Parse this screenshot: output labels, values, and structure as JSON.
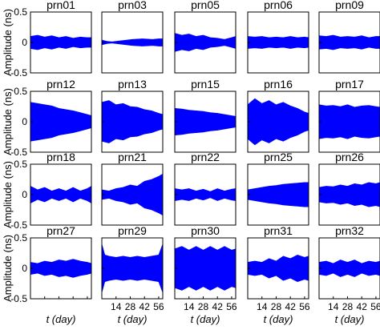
{
  "chart_data": [
    {
      "type": "area",
      "title": "prn01",
      "ylim": [
        -0.5,
        0.5
      ],
      "ylabel": "Amplitude (ns)",
      "xlabel": "",
      "yticks": [
        "0.5",
        "0",
        "-0.5"
      ],
      "xticks": [],
      "x": [
        0,
        7,
        14,
        21,
        28,
        35,
        42,
        49,
        56,
        60
      ],
      "upper": [
        0.1,
        0.12,
        0.09,
        0.11,
        0.08,
        0.1,
        0.07,
        0.09,
        0.08,
        0.08
      ],
      "lower": [
        -0.1,
        -0.12,
        -0.09,
        -0.11,
        -0.08,
        -0.1,
        -0.07,
        -0.09,
        -0.08,
        -0.08
      ]
    },
    {
      "type": "area",
      "title": "prn03",
      "ylim": [
        -0.5,
        0.5
      ],
      "x": [
        0,
        5,
        10,
        20,
        30,
        40,
        50,
        56,
        60
      ],
      "upper": [
        0.04,
        0.02,
        0.01,
        0.03,
        0.05,
        0.06,
        0.05,
        0.06,
        0.06
      ],
      "lower": [
        -0.04,
        -0.02,
        -0.01,
        -0.03,
        -0.05,
        -0.06,
        -0.05,
        -0.06,
        -0.06
      ]
    },
    {
      "type": "area",
      "title": "prn05",
      "ylim": [
        -0.5,
        0.5
      ],
      "x": [
        0,
        7,
        14,
        21,
        28,
        35,
        42,
        49,
        56,
        60
      ],
      "upper": [
        0.15,
        0.12,
        0.14,
        0.1,
        0.12,
        0.08,
        0.07,
        0.05,
        0.08,
        0.1
      ],
      "lower": [
        -0.15,
        -0.12,
        -0.14,
        -0.1,
        -0.12,
        -0.08,
        -0.07,
        -0.05,
        -0.08,
        -0.1
      ]
    },
    {
      "type": "area",
      "title": "prn06",
      "ylim": [
        -0.5,
        0.5
      ],
      "x": [
        0,
        7,
        14,
        21,
        28,
        35,
        42,
        49,
        56,
        60
      ],
      "upper": [
        0.1,
        0.09,
        0.1,
        0.08,
        0.09,
        0.08,
        0.1,
        0.08,
        0.09,
        0.08
      ],
      "lower": [
        -0.1,
        -0.09,
        -0.1,
        -0.08,
        -0.09,
        -0.08,
        -0.1,
        -0.08,
        -0.09,
        -0.08
      ]
    },
    {
      "type": "area",
      "title": "prn09",
      "ylim": [
        -0.5,
        0.5
      ],
      "x": [
        0,
        7,
        14,
        21,
        28,
        35,
        42,
        49,
        56,
        60
      ],
      "upper": [
        0.11,
        0.1,
        0.12,
        0.09,
        0.1,
        0.09,
        0.11,
        0.08,
        0.1,
        0.1
      ],
      "lower": [
        -0.11,
        -0.1,
        -0.12,
        -0.09,
        -0.1,
        -0.09,
        -0.11,
        -0.08,
        -0.1,
        -0.1
      ]
    },
    {
      "type": "area",
      "title": "prn12",
      "ylim": [
        -0.5,
        0.5
      ],
      "x": [
        0,
        7,
        14,
        21,
        28,
        35,
        42,
        49,
        56,
        60
      ],
      "upper": [
        0.32,
        0.3,
        0.28,
        0.26,
        0.22,
        0.2,
        0.18,
        0.15,
        0.12,
        0.1
      ],
      "lower": [
        -0.32,
        -0.3,
        -0.28,
        -0.26,
        -0.22,
        -0.2,
        -0.18,
        -0.15,
        -0.12,
        -0.1
      ]
    },
    {
      "type": "area",
      "title": "prn13",
      "ylim": [
        -0.5,
        0.5
      ],
      "x": [
        0,
        7,
        14,
        21,
        28,
        35,
        42,
        49,
        56,
        60
      ],
      "upper": [
        0.32,
        0.35,
        0.28,
        0.3,
        0.25,
        0.24,
        0.2,
        0.18,
        0.14,
        0.12
      ],
      "lower": [
        -0.32,
        -0.35,
        -0.28,
        -0.3,
        -0.25,
        -0.24,
        -0.2,
        -0.18,
        -0.14,
        -0.12
      ]
    },
    {
      "type": "area",
      "title": "prn15",
      "ylim": [
        -0.5,
        0.5
      ],
      "x": [
        0,
        7,
        14,
        21,
        28,
        35,
        42,
        49,
        56,
        60
      ],
      "upper": [
        0.22,
        0.21,
        0.19,
        0.18,
        0.17,
        0.15,
        0.14,
        0.12,
        0.1,
        0.09
      ],
      "lower": [
        -0.22,
        -0.21,
        -0.19,
        -0.18,
        -0.17,
        -0.15,
        -0.14,
        -0.12,
        -0.1,
        -0.09
      ]
    },
    {
      "type": "area",
      "title": "prn16",
      "ylim": [
        -0.5,
        0.5
      ],
      "x": [
        0,
        7,
        14,
        21,
        28,
        35,
        42,
        49,
        56,
        60
      ],
      "upper": [
        0.28,
        0.38,
        0.3,
        0.35,
        0.28,
        0.32,
        0.26,
        0.22,
        0.16,
        0.14
      ],
      "lower": [
        -0.28,
        -0.38,
        -0.3,
        -0.35,
        -0.28,
        -0.32,
        -0.26,
        -0.22,
        -0.16,
        -0.14
      ]
    },
    {
      "type": "area",
      "title": "prn17",
      "ylim": [
        -0.5,
        0.5
      ],
      "x": [
        0,
        7,
        14,
        21,
        28,
        35,
        42,
        49,
        56,
        60
      ],
      "upper": [
        0.28,
        0.26,
        0.27,
        0.25,
        0.28,
        0.24,
        0.26,
        0.27,
        0.25,
        0.24
      ],
      "lower": [
        -0.28,
        -0.26,
        -0.27,
        -0.25,
        -0.28,
        -0.24,
        -0.26,
        -0.27,
        -0.25,
        -0.24
      ]
    },
    {
      "type": "area",
      "title": "prn18",
      "ylim": [
        -0.5,
        0.5
      ],
      "x": [
        0,
        7,
        14,
        21,
        28,
        35,
        42,
        49,
        56,
        60
      ],
      "upper": [
        0.14,
        0.08,
        0.12,
        0.06,
        0.1,
        0.06,
        0.12,
        0.06,
        0.1,
        0.14
      ],
      "lower": [
        -0.14,
        -0.08,
        -0.12,
        -0.06,
        -0.1,
        -0.06,
        -0.12,
        -0.06,
        -0.1,
        -0.14
      ]
    },
    {
      "type": "area",
      "title": "prn21",
      "ylim": [
        -0.5,
        0.5
      ],
      "x": [
        0,
        7,
        14,
        21,
        28,
        35,
        42,
        49,
        56,
        60
      ],
      "upper": [
        0.08,
        0.06,
        0.1,
        0.12,
        0.16,
        0.14,
        0.22,
        0.25,
        0.3,
        0.34
      ],
      "lower": [
        -0.08,
        -0.06,
        -0.1,
        -0.12,
        -0.16,
        -0.14,
        -0.22,
        -0.25,
        -0.3,
        -0.34
      ]
    },
    {
      "type": "area",
      "title": "prn22",
      "ylim": [
        -0.5,
        0.5
      ],
      "x": [
        0,
        7,
        14,
        21,
        28,
        35,
        42,
        49,
        56,
        60
      ],
      "upper": [
        0.1,
        0.08,
        0.1,
        0.06,
        0.09,
        0.05,
        0.1,
        0.06,
        0.09,
        0.1
      ],
      "lower": [
        -0.1,
        -0.08,
        -0.1,
        -0.06,
        -0.09,
        -0.05,
        -0.1,
        -0.06,
        -0.09,
        -0.1
      ]
    },
    {
      "type": "area",
      "title": "prn25",
      "ylim": [
        -0.5,
        0.5
      ],
      "x": [
        0,
        7,
        14,
        21,
        28,
        35,
        42,
        49,
        56,
        60
      ],
      "upper": [
        0.08,
        0.1,
        0.12,
        0.14,
        0.15,
        0.17,
        0.18,
        0.19,
        0.2,
        0.2
      ],
      "lower": [
        -0.08,
        -0.1,
        -0.12,
        -0.14,
        -0.15,
        -0.17,
        -0.18,
        -0.19,
        -0.2,
        -0.2
      ]
    },
    {
      "type": "area",
      "title": "prn26",
      "ylim": [
        -0.5,
        0.5
      ],
      "x": [
        0,
        7,
        14,
        21,
        28,
        35,
        42,
        49,
        56,
        60
      ],
      "upper": [
        0.12,
        0.14,
        0.13,
        0.16,
        0.14,
        0.18,
        0.16,
        0.2,
        0.18,
        0.2
      ],
      "lower": [
        -0.12,
        -0.14,
        -0.13,
        -0.16,
        -0.14,
        -0.18,
        -0.16,
        -0.2,
        -0.18,
        -0.2
      ]
    },
    {
      "type": "area",
      "title": "prn27",
      "ylim": [
        -0.5,
        0.5
      ],
      "x": [
        0,
        7,
        14,
        21,
        28,
        35,
        42,
        49,
        56,
        60
      ],
      "upper": [
        0.1,
        0.08,
        0.12,
        0.1,
        0.14,
        0.12,
        0.15,
        0.12,
        0.1,
        0.08
      ],
      "lower": [
        -0.1,
        -0.08,
        -0.12,
        -0.1,
        -0.14,
        -0.12,
        -0.15,
        -0.12,
        -0.1,
        -0.08
      ],
      "xlabel": "t (day)"
    },
    {
      "type": "area",
      "title": "prn29",
      "ylim": [
        -0.5,
        0.5
      ],
      "x": [
        0,
        3,
        7,
        14,
        21,
        28,
        35,
        42,
        49,
        56,
        60
      ],
      "upper": [
        0.4,
        0.22,
        0.2,
        0.18,
        0.2,
        0.18,
        0.2,
        0.18,
        0.2,
        0.22,
        0.4
      ],
      "lower": [
        -0.4,
        -0.22,
        -0.2,
        -0.18,
        -0.2,
        -0.18,
        -0.2,
        -0.18,
        -0.2,
        -0.22,
        -0.4
      ],
      "xticks": [
        "14",
        "28",
        "42",
        "56"
      ],
      "xlabel": "t (day)"
    },
    {
      "type": "area",
      "title": "prn30",
      "ylim": [
        -0.5,
        0.5
      ],
      "x": [
        0,
        7,
        14,
        21,
        28,
        35,
        42,
        49,
        56,
        60
      ],
      "upper": [
        0.32,
        0.36,
        0.3,
        0.36,
        0.3,
        0.36,
        0.3,
        0.36,
        0.3,
        0.32
      ],
      "lower": [
        -0.32,
        -0.36,
        -0.3,
        -0.36,
        -0.3,
        -0.36,
        -0.3,
        -0.36,
        -0.3,
        -0.32
      ],
      "xticks": [
        "14",
        "28",
        "42",
        "56"
      ],
      "xlabel": "t (day)"
    },
    {
      "type": "area",
      "title": "prn31",
      "ylim": [
        -0.5,
        0.5
      ],
      "x": [
        0,
        7,
        14,
        21,
        28,
        35,
        42,
        49,
        56,
        60
      ],
      "upper": [
        0.1,
        0.12,
        0.1,
        0.16,
        0.12,
        0.2,
        0.16,
        0.22,
        0.18,
        0.2
      ],
      "lower": [
        -0.1,
        -0.12,
        -0.1,
        -0.16,
        -0.12,
        -0.2,
        -0.16,
        -0.22,
        -0.18,
        -0.2
      ],
      "xticks": [
        "14",
        "28",
        "42",
        "56"
      ],
      "xlabel": "t (day)"
    },
    {
      "type": "area",
      "title": "prn32",
      "ylim": [
        -0.5,
        0.5
      ],
      "x": [
        0,
        7,
        14,
        21,
        28,
        35,
        42,
        49,
        56,
        60
      ],
      "upper": [
        0.1,
        0.12,
        0.08,
        0.14,
        0.1,
        0.14,
        0.08,
        0.12,
        0.1,
        0.12
      ],
      "lower": [
        -0.1,
        -0.12,
        -0.08,
        -0.14,
        -0.1,
        -0.14,
        -0.08,
        -0.12,
        -0.1,
        -0.12
      ],
      "xticks": [
        "14",
        "28",
        "42",
        "56"
      ],
      "xlabel": "t (day)"
    }
  ],
  "figure": {
    "ylabel": "Amplitude (ns)",
    "xlabel_t": "t",
    "xlabel_unit": " (day)",
    "yticks": [
      "0.5",
      "0",
      "-0.5"
    ],
    "xticks": [
      "14",
      "28",
      "42",
      "56"
    ],
    "fill_color": "#0000ff",
    "axis_color": "#000000"
  }
}
